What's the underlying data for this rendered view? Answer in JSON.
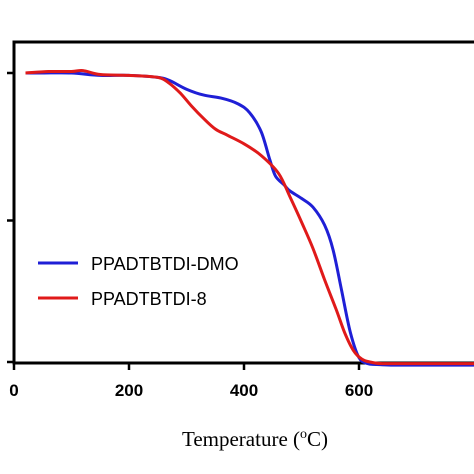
{
  "chart_data": {
    "type": "line",
    "title": "",
    "xlabel_parts": {
      "pre": "Temperature (",
      "sup": "o",
      "post": "C)"
    },
    "ylabel": "",
    "xlim": [
      0,
      800
    ],
    "ylim": [
      0,
      105
    ],
    "xticks": [
      0,
      200,
      400,
      600
    ],
    "xtick_labels": [
      "0",
      "200",
      "400",
      "600"
    ],
    "yticks": [
      0,
      50,
      100
    ],
    "grid": false,
    "legend_position": "lower-left",
    "series": [
      {
        "name": "PPADTBTDI-DMO",
        "color": "#1f1fd6",
        "x": [
          20,
          50,
          100,
          150,
          200,
          250,
          270,
          300,
          330,
          360,
          390,
          410,
          430,
          445,
          455,
          470,
          480,
          500,
          520,
          540,
          555,
          570,
          585,
          600,
          615,
          630,
          660,
          700,
          750,
          800
        ],
        "y": [
          100,
          100,
          100,
          99.2,
          99.2,
          98.5,
          97.5,
          94.5,
          92.5,
          91.5,
          89.5,
          86.5,
          80.0,
          70.5,
          65.0,
          62.0,
          60.0,
          57.5,
          54.5,
          48.5,
          40.0,
          26.0,
          12.0,
          3.5,
          1.5,
          1.2,
          1.0,
          1.0,
          1.0,
          1.0
        ]
      },
      {
        "name": "PPADTBTDI-8",
        "color": "#e01a1a",
        "x": [
          20,
          60,
          100,
          120,
          150,
          200,
          250,
          270,
          290,
          310,
          330,
          350,
          370,
          400,
          430,
          460,
          480,
          500,
          520,
          540,
          560,
          575,
          590,
          605,
          620,
          640,
          700,
          750,
          800
        ],
        "y": [
          100,
          100.5,
          100.5,
          100.8,
          99.5,
          99.2,
          98.5,
          96.5,
          93.0,
          88.5,
          84.5,
          81.0,
          79.0,
          76.0,
          72.0,
          66.0,
          58.0,
          49.5,
          40.5,
          30.0,
          20.0,
          12.0,
          6.0,
          3.0,
          2.0,
          1.5,
          1.5,
          1.5,
          1.5
        ]
      }
    ]
  }
}
